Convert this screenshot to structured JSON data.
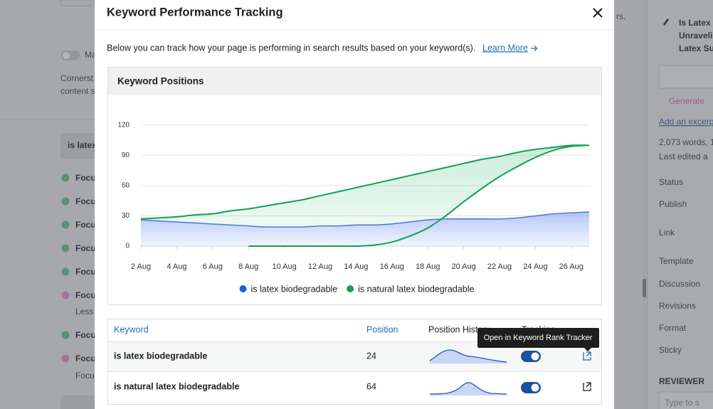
{
  "background": {
    "top_hint": "rs.",
    "left": {
      "toggle_label": "Ma",
      "cornerstone": [
        "Cornerst",
        "content s"
      ],
      "keyphrase": "is latex",
      "checks": [
        "Focu",
        "Focu",
        "Focu",
        "Focu",
        "Focu",
        "Focu",
        "Focu",
        "Focu"
      ],
      "notes": [
        "Less",
        "Focu"
      ]
    },
    "right": {
      "post_title": [
        "Is Latex I",
        "Unraveli",
        "Latex Su"
      ],
      "generate": "Generate",
      "excerpt": "Add an excerp",
      "words": "2,073 words, 1",
      "edited": "Last edited a",
      "rows": [
        "Status",
        "Publish",
        "Link",
        "Template",
        "Discussion",
        "Revisions",
        "Format",
        "Sticky"
      ],
      "reviewer": "REVIEWER",
      "search": "Type to s"
    }
  },
  "modal": {
    "title": "Keyword Performance Tracking",
    "intro": "Below you can track how your page is performing in search results based on your keyword(s).",
    "learn_more": "Learn More",
    "chart_card_title": "Keyword Positions",
    "table": {
      "headers": [
        "Keyword",
        "Position",
        "Position History",
        "Tracking"
      ],
      "rows": [
        [
          "is latex biodegradable",
          24
        ],
        [
          "is natural latex biodegradable",
          64
        ]
      ]
    },
    "tooltip": "Open in Keyword Rank Tracker"
  },
  "chart_data": {
    "type": "line",
    "categories": [
      "2 Aug",
      null,
      "4 Aug",
      null,
      "6 Aug",
      null,
      "8 Aug",
      null,
      "10 Aug",
      null,
      "12 Aug",
      null,
      "14 Aug",
      null,
      "16 Aug",
      null,
      "18 Aug",
      null,
      "20 Aug",
      null,
      "22 Aug",
      null,
      "24 Aug",
      null,
      "26 Aug",
      null
    ],
    "series": [
      {
        "name": "is latex biodegradable",
        "color": "#1f5fd6",
        "values": [
          26,
          25,
          24,
          23,
          22,
          21,
          20,
          19,
          19,
          19,
          20,
          20,
          21,
          21,
          22,
          24,
          26,
          27,
          27,
          27,
          27,
          28,
          30,
          32,
          33,
          34
        ]
      },
      {
        "name": "is natural latex biodegradable",
        "color": "#12a150",
        "values": [
          27,
          28,
          29,
          31,
          32,
          35,
          37,
          40,
          43,
          46,
          50,
          54,
          58,
          62,
          66,
          70,
          74,
          78,
          82,
          86,
          89,
          93,
          96,
          98,
          100,
          100
        ],
        "lower_values": [
          null,
          null,
          null,
          null,
          null,
          null,
          0,
          0,
          0,
          0,
          0,
          0,
          0,
          1,
          4,
          10,
          18,
          30,
          44,
          57,
          69,
          79,
          88,
          95,
          99,
          100
        ]
      }
    ],
    "ylim": [
      0,
      120
    ],
    "yticks": [
      0,
      30,
      60,
      90,
      120
    ],
    "grid": true,
    "legend": "bottom"
  }
}
